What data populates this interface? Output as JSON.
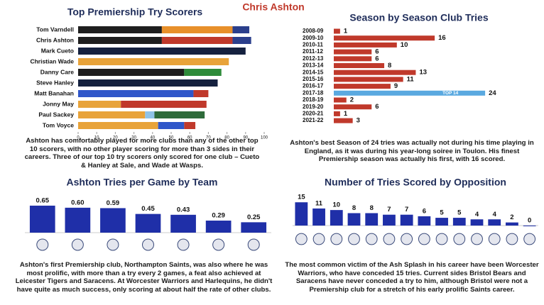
{
  "title": "Chris Ashton",
  "chart_data": [
    {
      "type": "stacked-hbar",
      "title": "Top Premiership Try Scorers",
      "categories": [
        "Tom Varndell",
        "Chris Ashton",
        "Mark Cueto",
        "Christian Wade",
        "Danny Care",
        "Steve Hanley",
        "Matt Banahan",
        "Jonny May",
        "Paul Sackey",
        "Tom Voyce"
      ],
      "segments": [
        [
          {
            "value": 45,
            "color": "#1e1e1e"
          },
          {
            "value": 38,
            "color": "#e8902a"
          },
          {
            "value": 9,
            "color": "#2b3f8c"
          }
        ],
        [
          {
            "value": 45,
            "color": "#1e1e1e"
          },
          {
            "value": 38,
            "color": "#c0392b"
          },
          {
            "value": 10,
            "color": "#2b3f8c"
          }
        ],
        [
          {
            "value": 90,
            "color": "#15213f"
          }
        ],
        [
          {
            "value": 81,
            "color": "#e8a33a"
          }
        ],
        [
          {
            "value": 57,
            "color": "#1e1e1e"
          },
          {
            "value": 20,
            "color": "#2e8b3a"
          }
        ],
        [
          {
            "value": 75,
            "color": "#15213f"
          }
        ],
        [
          {
            "value": 62,
            "color": "#2f56c9"
          },
          {
            "value": 8,
            "color": "#c0392b"
          }
        ],
        [
          {
            "value": 23,
            "color": "#e8a33a"
          },
          {
            "value": 46,
            "color": "#c0392b"
          }
        ],
        [
          {
            "value": 36,
            "color": "#e8a33a"
          },
          {
            "value": 5,
            "color": "#8fc3e8"
          },
          {
            "value": 27,
            "color": "#2e6b3a"
          }
        ],
        [
          {
            "value": 43,
            "color": "#e8a33a"
          },
          {
            "value": 14,
            "color": "#2f56c9"
          },
          {
            "value": 6,
            "color": "#c0392b"
          }
        ]
      ],
      "xlim": [
        0,
        100
      ],
      "xticks": [
        0,
        10,
        20,
        30,
        40,
        50,
        60,
        70,
        80,
        90,
        100
      ],
      "caption": "Ashton has comfortably played for more clubs than any of the other top 10 scorers, with no other player scoring for more than 3 sides in their careers. Three of our top 10 try scorers only scored for one club – Cueto & Hanley at Sale, and Wade at Wasps."
    },
    {
      "type": "hbar",
      "title": "Season by Season Club Tries",
      "categories": [
        "2008-09",
        "2009-10",
        "2010-11",
        "2011-12",
        "2012-13",
        "2013-14",
        "2014-15",
        "2015-16",
        "2016-17",
        "2017-18",
        "2018-19",
        "2019-20",
        "2020-21",
        "2021-22"
      ],
      "values": [
        1,
        16,
        10,
        6,
        6,
        8,
        13,
        11,
        9,
        24,
        2,
        6,
        1,
        3
      ],
      "colors": [
        "#c0392b",
        "#c0392b",
        "#c0392b",
        "#c0392b",
        "#c0392b",
        "#c0392b",
        "#c0392b",
        "#c0392b",
        "#c0392b",
        "#5aa9e0",
        "#c0392b",
        "#c0392b",
        "#c0392b",
        "#c0392b"
      ],
      "annotations": [
        {
          "index": 9,
          "text": "TOP 14"
        }
      ],
      "xlim": [
        0,
        25
      ],
      "caption": "Ashton's best Season of 24 tries was actually not during his time playing in England, as it was during his year-long soiree in Toulon. His finest Premiership season was actually his first, with 16 scored."
    },
    {
      "type": "bar",
      "title": "Ashton Tries per Game by Team",
      "categories": [
        null,
        null,
        null,
        null,
        null,
        null,
        null
      ],
      "values": [
        0.65,
        0.6,
        0.59,
        0.45,
        0.43,
        0.29,
        0.25
      ],
      "value_labels": [
        "0.65",
        "0.60",
        "0.59",
        "0.45",
        "0.43",
        "0.29",
        "0.25"
      ],
      "color": "#1f2fa8",
      "ylim": [
        0,
        0.7
      ],
      "caption": "Ashton's first Premiership club, Northampton Saints, was also where he was most prolific, with more than a try every 2 games, a feat also achieved at Leicester Tigers and Saracens. At Worcester Warriors and Harlequins, he didn't have quite as much success, only scoring at about half the rate of other clubs."
    },
    {
      "type": "bar",
      "title": "Number of Tries Scored by Opposition",
      "categories": [
        null,
        null,
        null,
        null,
        null,
        null,
        null,
        null,
        null,
        null,
        null,
        null,
        null,
        null
      ],
      "values": [
        15,
        11,
        10,
        8,
        8,
        7,
        7,
        6,
        5,
        5,
        4,
        4,
        2,
        0
      ],
      "color": "#1f2fa8",
      "ylim": [
        0,
        16
      ],
      "caption": "The most common victim of the Ash Splash in his career have been Worcester Warriors, who have conceded 15 tries. Current sides Bristol Bears and Saracens have never conceded a try to him, although Bristol were not a Premiership club for a stretch of his early prolific Saints career."
    }
  ]
}
